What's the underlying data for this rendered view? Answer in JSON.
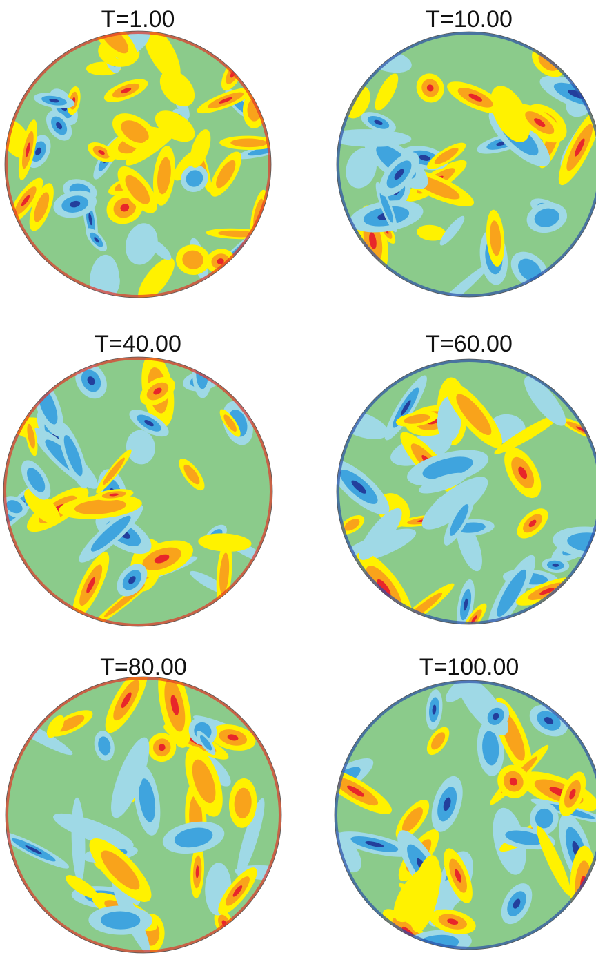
{
  "panels": [
    {
      "title": "T=1.00"
    },
    {
      "title": "T=10.00"
    },
    {
      "title": "T=40.00"
    },
    {
      "title": "T=60.00"
    },
    {
      "title": "T=80.00"
    },
    {
      "title": "T=100.00"
    }
  ]
}
